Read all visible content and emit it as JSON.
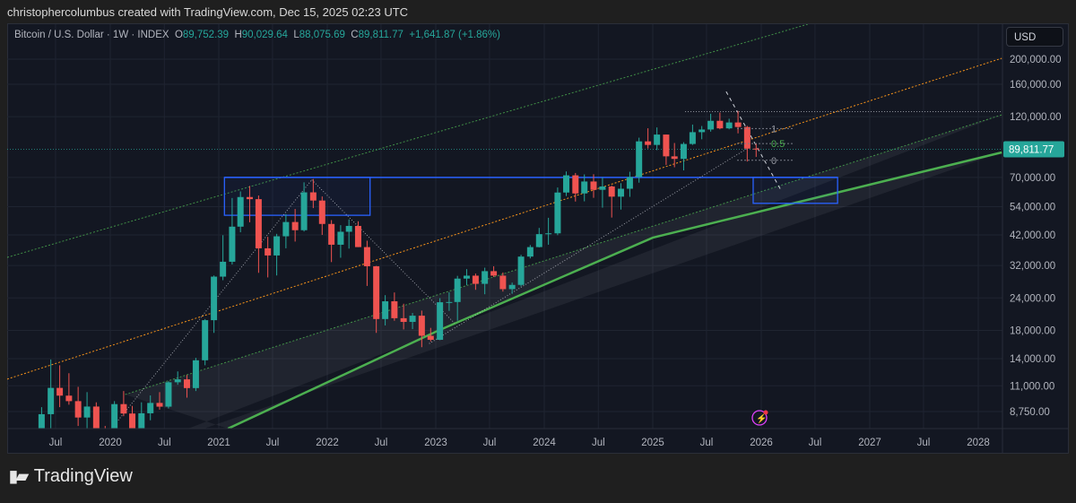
{
  "caption": "christophercolumbus created with TradingView.com, Dec 15, 2025 02:23 UTC",
  "legend": {
    "symbol": "Bitcoin / U.S. Dollar · 1W · INDEX",
    "o_label": "O",
    "o": "89,752.39",
    "h_label": "H",
    "h": "90,029.64",
    "l_label": "L",
    "l": "88,075.69",
    "c_label": "C",
    "c": "89,811.77",
    "change": "+1,641.87 (+1.86%)"
  },
  "currency": "USD",
  "brand": "TradingView",
  "logo_text": "TV",
  "colors": {
    "up": "#26a69a",
    "down": "#ef5350",
    "orange": "#f7931a",
    "green": "#4caf50",
    "blue": "#2962ff",
    "last_price": "#26a69a"
  },
  "chart_data": {
    "type": "candlestick",
    "scale": "log",
    "grid": true,
    "y_ticks": [
      200000,
      160000,
      120000,
      70000,
      54000,
      42000,
      32000,
      24000,
      18000,
      14000,
      11000,
      8750
    ],
    "y_tick_labels": [
      "200,000.00",
      "160,000.00",
      "120,000.00",
      "70,000.00",
      "54,000.00",
      "42,000.00",
      "32,000.00",
      "24,000.00",
      "18,000.00",
      "14,000.00",
      "11,000.00",
      "8,750.00"
    ],
    "x_ticks": [
      {
        "date": "2019-07-01",
        "label": "Jul"
      },
      {
        "date": "2020-01-01",
        "label": "2020"
      },
      {
        "date": "2020-07-01",
        "label": "Jul"
      },
      {
        "date": "2021-01-01",
        "label": "2021"
      },
      {
        "date": "2021-07-01",
        "label": "Jul"
      },
      {
        "date": "2022-01-01",
        "label": "2022"
      },
      {
        "date": "2022-07-01",
        "label": "Jul"
      },
      {
        "date": "2023-01-01",
        "label": "2023"
      },
      {
        "date": "2023-07-01",
        "label": "Jul"
      },
      {
        "date": "2024-01-01",
        "label": "2024"
      },
      {
        "date": "2024-07-01",
        "label": "Jul"
      },
      {
        "date": "2025-01-01",
        "label": "2025"
      },
      {
        "date": "2025-07-01",
        "label": "Jul"
      },
      {
        "date": "2026-01-01",
        "label": "2026"
      },
      {
        "date": "2026-07-01",
        "label": "Jul"
      },
      {
        "date": "2027-01-01",
        "label": "2027"
      },
      {
        "date": "2027-07-01",
        "label": "Jul"
      },
      {
        "date": "2028-01-01",
        "label": "2028"
      }
    ],
    "last_price": 89811.77,
    "last_price_label": "89,811.77",
    "start_month": "2019-05",
    "first_open": 5300,
    "monthly_hlc": [
      [
        9100,
        5300,
        8550
      ],
      [
        13900,
        7500,
        10800
      ],
      [
        13200,
        9100,
        10080
      ],
      [
        12300,
        9300,
        9600
      ],
      [
        10900,
        7700,
        8300
      ],
      [
        10400,
        7300,
        9150
      ],
      [
        9500,
        6500,
        7550
      ],
      [
        7700,
        6500,
        7200
      ],
      [
        9600,
        6900,
        9350
      ],
      [
        10500,
        8400,
        8600
      ],
      [
        9200,
        3900,
        6400
      ],
      [
        9500,
        6200,
        8620
      ],
      [
        10100,
        8100,
        9450
      ],
      [
        10400,
        8900,
        9140
      ],
      [
        11450,
        9000,
        11350
      ],
      [
        12500,
        11100,
        11650
      ],
      [
        12100,
        9900,
        10780
      ],
      [
        14100,
        10500,
        13800
      ],
      [
        19900,
        13200,
        19700
      ],
      [
        29300,
        17600,
        29000
      ],
      [
        41900,
        28100,
        33100
      ],
      [
        58300,
        32300,
        45200
      ],
      [
        61800,
        43000,
        58800
      ],
      [
        64900,
        47000,
        57700
      ],
      [
        59600,
        30000,
        37300
      ],
      [
        41300,
        28800,
        35000
      ],
      [
        42400,
        29300,
        41500
      ],
      [
        50500,
        37300,
        47100
      ],
      [
        52900,
        39600,
        43800
      ],
      [
        67000,
        43300,
        61300
      ],
      [
        69000,
        53300,
        57000
      ],
      [
        59100,
        42000,
        46300
      ],
      [
        47900,
        33000,
        38500
      ],
      [
        45800,
        34300,
        43200
      ],
      [
        48200,
        37200,
        45500
      ],
      [
        47400,
        37700,
        37700
      ],
      [
        39900,
        26700,
        31800
      ],
      [
        31900,
        17600,
        19900
      ],
      [
        24600,
        18800,
        23300
      ],
      [
        25200,
        19600,
        20050
      ],
      [
        22800,
        18150,
        19400
      ],
      [
        21000,
        18200,
        20500
      ],
      [
        21450,
        15500,
        17150
      ],
      [
        18400,
        16300,
        16550
      ],
      [
        23950,
        16500,
        23100
      ],
      [
        25250,
        21400,
        23150
      ],
      [
        29200,
        19600,
        28500
      ],
      [
        31000,
        26900,
        29250
      ],
      [
        29800,
        25800,
        27200
      ],
      [
        31400,
        24800,
        30450
      ],
      [
        31800,
        28900,
        29250
      ],
      [
        30100,
        25400,
        25950
      ],
      [
        27500,
        24900,
        26950
      ],
      [
        35200,
        26600,
        34650
      ],
      [
        38400,
        34100,
        37700
      ],
      [
        44700,
        37600,
        42300
      ],
      [
        48900,
        38500,
        42600
      ],
      [
        64000,
        41900,
        61200
      ],
      [
        73800,
        59300,
        71300
      ],
      [
        72800,
        56500,
        60700
      ],
      [
        71900,
        56600,
        67500
      ],
      [
        72000,
        58400,
        62700
      ],
      [
        70000,
        53500,
        64600
      ],
      [
        65100,
        49000,
        59000
      ],
      [
        66500,
        52600,
        63300
      ],
      [
        73600,
        58900,
        70200
      ],
      [
        99600,
        66800,
        96400
      ],
      [
        108300,
        90500,
        93400
      ],
      [
        109100,
        89200,
        102400
      ],
      [
        102500,
        78200,
        84400
      ],
      [
        95000,
        76600,
        82500
      ],
      [
        95700,
        74500,
        94200
      ],
      [
        111900,
        93400,
        104600
      ],
      [
        110500,
        98200,
        107100
      ],
      [
        123200,
        105100,
        115700
      ],
      [
        124500,
        107300,
        108200
      ],
      [
        117900,
        107300,
        114000
      ],
      [
        126200,
        103500,
        109500
      ],
      [
        110600,
        80600,
        90400
      ],
      [
        94600,
        84000,
        89811
      ]
    ],
    "drawings": {
      "orange_channel": [
        [
          "2019-01-19",
          11670
        ],
        [
          "2028-03-20",
          201600
        ]
      ],
      "outer_green_channel": [
        [
          "2019-01-19",
          34400
        ],
        [
          "2026-06-17",
          275000
        ]
      ],
      "inner_green_channel": [
        [
          "2020-02-20",
          10180
        ],
        [
          "2028-03-20",
          122000
        ]
      ],
      "support_curve": [
        [
          "2021-02-01",
          7520
        ],
        [
          "2023-01-01",
          17780
        ],
        [
          "2025-01-01",
          41000
        ],
        [
          "2028-03-20",
          87400
        ]
      ],
      "box_2021_top": {
        "from": "2021-01-20",
        "to": "2022-05-25",
        "top": 70000,
        "bottom": 50000
      },
      "box_target": {
        "from": "2025-12-05",
        "to": "2026-09-15",
        "top": 70000,
        "bottom": 55600
      },
      "resistance_line": {
        "from": "2021-01-20",
        "to": "2026-09-15",
        "price": 70000
      },
      "ath_line": {
        "from": "2025-04-20",
        "to": "2028-03-20",
        "price": 125500
      },
      "trend_lines": [
        [
          [
            "2020-01-05",
            7520
          ],
          [
            "2021-11-10",
            68500
          ]
        ],
        [
          [
            "2021-11-10",
            68500
          ],
          [
            "2023-03-05",
            19200
          ]
        ],
        [
          [
            "2022-12-10",
            16000
          ],
          [
            "2025-11-25",
            92000
          ]
        ]
      ],
      "dashed_projection": [
        [
          "2025-09-05",
          150000
        ],
        [
          "2026-03-10",
          62000
        ]
      ],
      "fib_levels": [
        {
          "label": "1",
          "price": 108000
        },
        {
          "label": "0.5",
          "price": 94500
        },
        {
          "label": "0",
          "price": 81500
        }
      ]
    }
  }
}
